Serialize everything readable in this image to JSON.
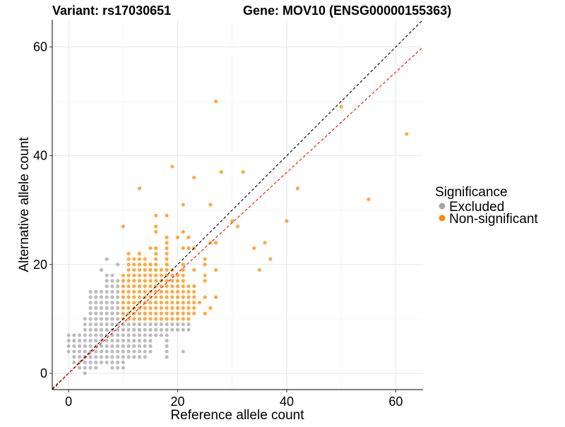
{
  "chart_data": {
    "type": "scatter",
    "title_left": "Variant: rs17030651",
    "title_right": "Gene: MOV10 (ENSG00000155363)",
    "xlabel": "Reference allele count",
    "ylabel": "Alternative allele count",
    "xlim": [
      -3,
      65
    ],
    "ylim": [
      -3,
      65
    ],
    "xticks": [
      0,
      20,
      40,
      60
    ],
    "yticks": [
      0,
      20,
      40,
      60
    ],
    "minor_ticks": [
      10,
      30,
      50
    ],
    "grid": true,
    "legend": {
      "title": "Significance",
      "placement": "right",
      "entries": [
        {
          "label": "Excluded",
          "color": "#a6a6a6"
        },
        {
          "label": "Non-significant",
          "color": "#ff8c00"
        }
      ]
    },
    "reference_lines": [
      {
        "name": "identity",
        "slope": 1,
        "intercept": 0,
        "color": "#000000",
        "style": "dashed"
      },
      {
        "name": "expected-ratio",
        "slope": 0.923,
        "intercept": 0,
        "color": "#ff0000",
        "style": "dashed"
      }
    ],
    "classification_rule": "Non-significant when both counts >= 10, otherwise Excluded",
    "dense_columns": [
      [
        0,
        4,
        7
      ],
      [
        1,
        2,
        7
      ],
      [
        2,
        1,
        7
      ],
      [
        3,
        0,
        10
      ],
      [
        4,
        1,
        15
      ],
      [
        5,
        1,
        15
      ],
      [
        6,
        2,
        15
      ],
      [
        7,
        2,
        18
      ],
      [
        8,
        1,
        18
      ],
      [
        9,
        1,
        17
      ],
      [
        10,
        1,
        18
      ],
      [
        11,
        3,
        22
      ],
      [
        12,
        3,
        21
      ],
      [
        13,
        3,
        22
      ],
      [
        14,
        3,
        21
      ],
      [
        15,
        4,
        20
      ],
      [
        16,
        7,
        23
      ],
      [
        17,
        7,
        19
      ],
      [
        18,
        3,
        23
      ],
      [
        19,
        8,
        19
      ],
      [
        20,
        8,
        18
      ],
      [
        21,
        8,
        20
      ],
      [
        22,
        8,
        16
      ],
      [
        23,
        11,
        16
      ]
    ],
    "points": [
      [
        6,
        19
      ],
      [
        7,
        21
      ],
      [
        9,
        20
      ],
      [
        15,
        23
      ],
      [
        21,
        4
      ],
      [
        23,
        19
      ],
      [
        24,
        13
      ],
      [
        25,
        21
      ],
      [
        25,
        20
      ],
      [
        25,
        18
      ],
      [
        25,
        17
      ],
      [
        25,
        14
      ],
      [
        25,
        11
      ],
      [
        26,
        12
      ],
      [
        27,
        19
      ],
      [
        27,
        14
      ],
      [
        27,
        50
      ],
      [
        50,
        49
      ],
      [
        62,
        44
      ],
      [
        19,
        38
      ],
      [
        13,
        34
      ],
      [
        23,
        36
      ],
      [
        28,
        37
      ],
      [
        32,
        37
      ],
      [
        42,
        34
      ],
      [
        55,
        32
      ],
      [
        21,
        31
      ],
      [
        26,
        31
      ],
      [
        16,
        29
      ],
      [
        18,
        29
      ],
      [
        10,
        27
      ],
      [
        16,
        27
      ],
      [
        16,
        26
      ],
      [
        18,
        25
      ],
      [
        18,
        24
      ],
      [
        18,
        23
      ],
      [
        20,
        25
      ],
      [
        22,
        25
      ],
      [
        21,
        26
      ],
      [
        30,
        28
      ],
      [
        31,
        27
      ],
      [
        40,
        28
      ],
      [
        26,
        24
      ],
      [
        27,
        24
      ],
      [
        21,
        23
      ],
      [
        22,
        23
      ],
      [
        23,
        23
      ],
      [
        34,
        23
      ],
      [
        36,
        24
      ],
      [
        37,
        21
      ],
      [
        35,
        19
      ],
      [
        25,
        21
      ],
      [
        25,
        20
      ],
      [
        27,
        19
      ],
      [
        23,
        19
      ]
    ]
  }
}
